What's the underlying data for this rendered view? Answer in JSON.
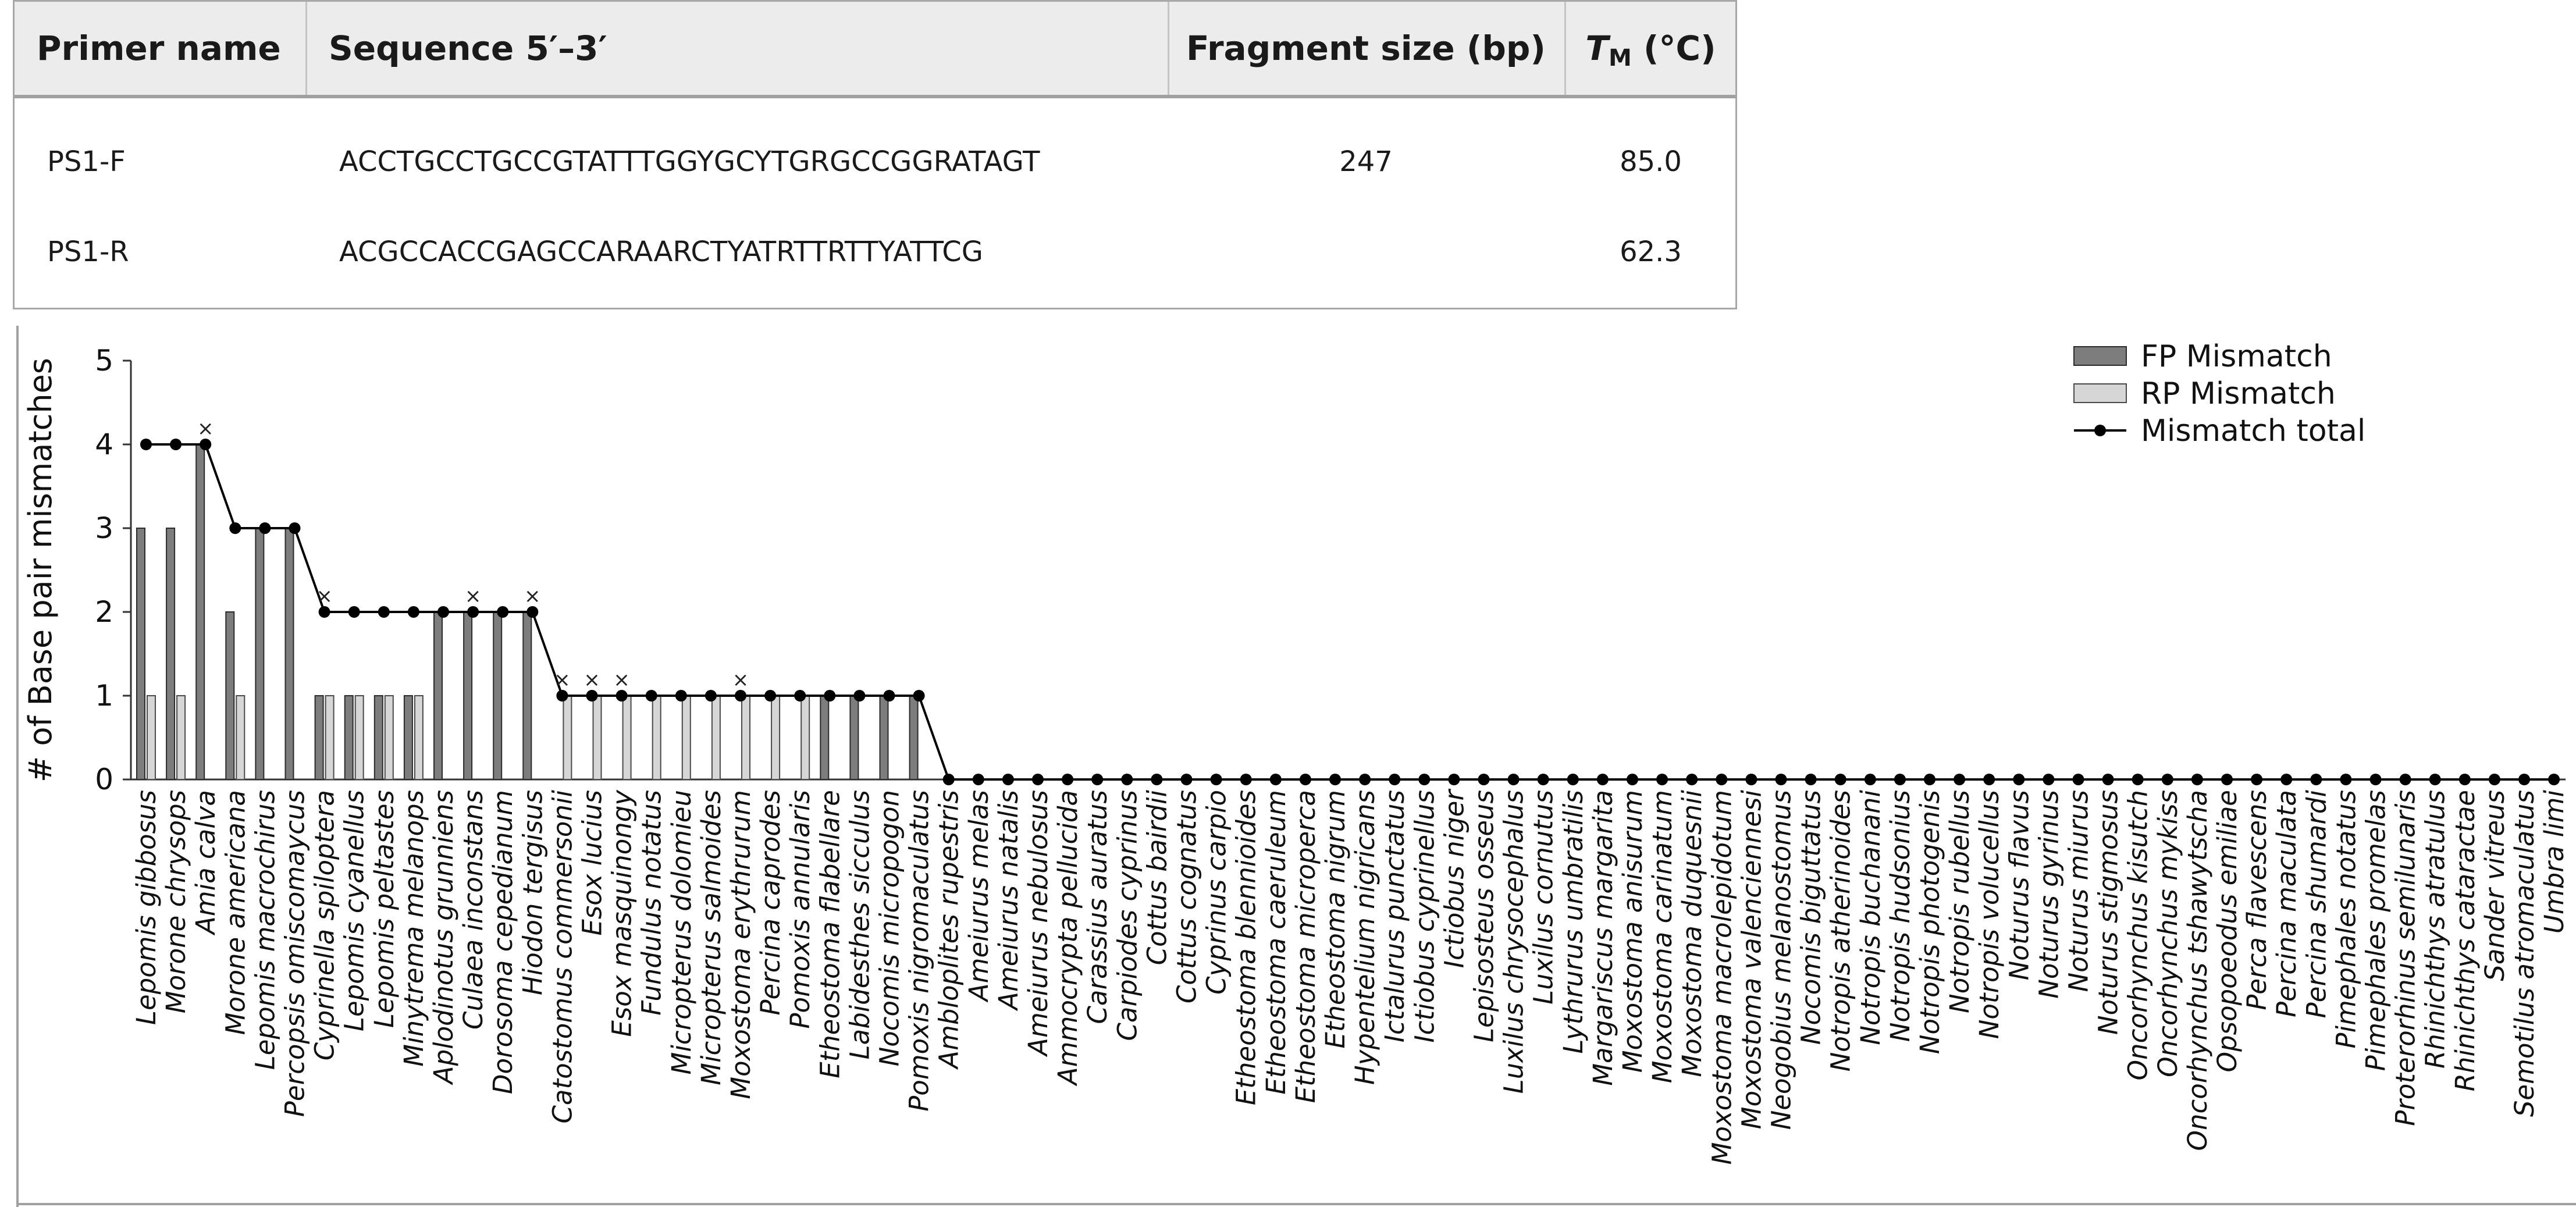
{
  "table": {
    "headers": [
      "Primer name",
      "Sequence 5′–3′",
      "Fragment size (bp)",
      "(°C)"
    ],
    "tm_symbol": "T",
    "tm_subscript": "M",
    "rows": [
      {
        "name": "PS1-F",
        "sequence": "ACCTGCCTGCCGTATTTGGYGCYTGRGCCGGRATAGT",
        "fragment": "247",
        "tm": "85.0"
      },
      {
        "name": "PS1-R",
        "sequence": "ACGCCACCGAGCCARAARCTYATRTTRTTYATTCG",
        "fragment": "",
        "tm": "62.3"
      }
    ]
  },
  "chart_data": {
    "type": "bar",
    "ylabel": "# of Base pair mismatches",
    "ylim": [
      0,
      5
    ],
    "yticks": [
      "0",
      "1",
      "2",
      "3",
      "4",
      "5"
    ],
    "legend_position": "top-right",
    "legend": [
      "FP Mismatch",
      "RP Mismatch",
      "Mismatch total"
    ],
    "colors": {
      "fp": "#7d7d7d",
      "rp": "#d6d6d6",
      "total": "#000000"
    },
    "marker_symbol": "×",
    "categories": [
      "Lepomis gibbosus",
      "Morone chrysops",
      "Amia calva",
      "Morone americana",
      "Lepomis macrochirus",
      "Percopsis omiscomaycus",
      "Cyprinella spiloptera",
      "Lepomis cyanellus",
      "Lepomis peltastes",
      "Minytrema melanops",
      "Aplodinotus grunniens",
      "Culaea inconstans",
      "Dorosoma cepedianum",
      "Hiodon tergisus",
      "Catostomus commersonii",
      "Esox lucius",
      "Esox masquinongy",
      "Fundulus notatus",
      "Micropterus dolomieu",
      "Micropterus salmoides",
      "Moxostoma erythrurum",
      "Percina caprodes",
      "Pomoxis annularis",
      "Etheostoma flabellare",
      "Labidesthes sicculus",
      "Nocomis micropogon",
      "Pomoxis nigromaculatus",
      "Ambloplites rupestris",
      "Ameiurus melas",
      "Ameiurus natalis",
      "Ameiurus nebulosus",
      "Ammocrypta pellucida",
      "Carassius auratus",
      "Carpiodes cyprinus",
      "Cottus bairdii",
      "Cottus cognatus",
      "Cyprinus carpio",
      "Etheostoma blennioides",
      "Etheostoma caeruleum",
      "Etheostoma microperca",
      "Etheostoma nigrum",
      "Hypentelium nigricans",
      "Ictalurus punctatus",
      "Ictiobus cyprinellus",
      "Ictiobus niger",
      "Lepisosteus osseus",
      "Luxilus chrysocephalus",
      "Luxilus cornutus",
      "Lythrurus umbratilis",
      "Margariscus margarita",
      "Moxostoma anisurum",
      "Moxostoma carinatum",
      "Moxostoma duquesnii",
      "Moxostoma macrolepidotum",
      "Moxostoma valenciennesi",
      "Neogobius melanostomus",
      "Nocomis biguttatus",
      "Notropis atherinoides",
      "Notropis buchanani",
      "Notropis hudsonius",
      "Notropis photogenis",
      "Notropis rubellus",
      "Notropis volucellus",
      "Noturus flavus",
      "Noturus gyrinus",
      "Noturus miurus",
      "Noturus stigmosus",
      "Oncorhynchus kisutch",
      "Oncorhynchus mykiss",
      "Oncorhynchus tshawytscha",
      "Opsopoeodus emiliae",
      "Perca flavescens",
      "Percina maculata",
      "Percina shumardi",
      "Pimephales notatus",
      "Pimephales promelas",
      "Proterorhinus semilunaris",
      "Rhinichthys atratulus",
      "Rhinichthys cataractae",
      "Sander vitreus",
      "Semotilus atromaculatus",
      "Umbra limi"
    ],
    "series": [
      {
        "name": "FP Mismatch",
        "values": [
          3,
          3,
          4,
          2,
          3,
          3,
          1,
          1,
          1,
          1,
          2,
          2,
          2,
          2,
          0,
          0,
          0,
          0,
          0,
          0,
          0,
          0,
          0,
          1,
          1,
          1,
          1,
          0,
          0,
          0,
          0,
          0,
          0,
          0,
          0,
          0,
          0,
          0,
          0,
          0,
          0,
          0,
          0,
          0,
          0,
          0,
          0,
          0,
          0,
          0,
          0,
          0,
          0,
          0,
          0,
          0,
          0,
          0,
          0,
          0,
          0,
          0,
          0,
          0,
          0,
          0,
          0,
          0,
          0,
          0,
          0,
          0,
          0,
          0,
          0,
          0,
          0,
          0,
          0,
          0,
          0,
          0
        ]
      },
      {
        "name": "RP Mismatch",
        "values": [
          1,
          1,
          0,
          1,
          0,
          0,
          1,
          1,
          1,
          1,
          0,
          0,
          0,
          0,
          1,
          1,
          1,
          1,
          1,
          1,
          1,
          1,
          1,
          0,
          0,
          0,
          0,
          0,
          0,
          0,
          0,
          0,
          0,
          0,
          0,
          0,
          0,
          0,
          0,
          0,
          0,
          0,
          0,
          0,
          0,
          0,
          0,
          0,
          0,
          0,
          0,
          0,
          0,
          0,
          0,
          0,
          0,
          0,
          0,
          0,
          0,
          0,
          0,
          0,
          0,
          0,
          0,
          0,
          0,
          0,
          0,
          0,
          0,
          0,
          0,
          0,
          0,
          0,
          0,
          0,
          0,
          0
        ]
      },
      {
        "name": "Mismatch total",
        "values": [
          4,
          4,
          4,
          3,
          3,
          3,
          2,
          2,
          2,
          2,
          2,
          2,
          2,
          2,
          1,
          1,
          1,
          1,
          1,
          1,
          1,
          1,
          1,
          1,
          1,
          1,
          1,
          0,
          0,
          0,
          0,
          0,
          0,
          0,
          0,
          0,
          0,
          0,
          0,
          0,
          0,
          0,
          0,
          0,
          0,
          0,
          0,
          0,
          0,
          0,
          0,
          0,
          0,
          0,
          0,
          0,
          0,
          0,
          0,
          0,
          0,
          0,
          0,
          0,
          0,
          0,
          0,
          0,
          0,
          0,
          0,
          0,
          0,
          0,
          0,
          0,
          0,
          0,
          0,
          0,
          0,
          0
        ]
      }
    ],
    "markers": [
      2,
      6,
      11,
      13,
      14,
      15,
      16,
      20
    ]
  }
}
